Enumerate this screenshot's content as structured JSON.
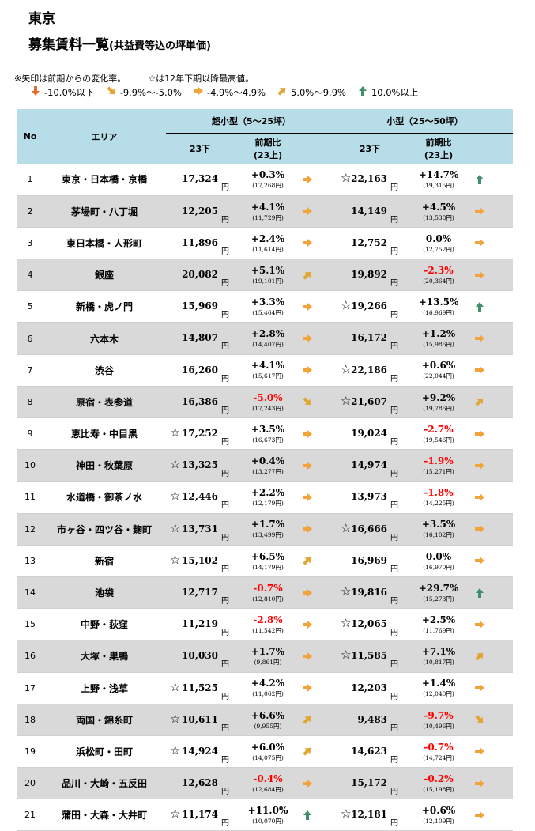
{
  "title": "東京",
  "subtitle_main": "募集賃料一覧",
  "subtitle_sub": "(共益費等込の坪単価)",
  "notes": [
    "※矢印は前期からの変化率。",
    "☆は12年下期以降最高値。"
  ],
  "legend": [
    {
      "icon": "arrow-down-icon",
      "label": "-10.0%以下",
      "color": "#e36c2c"
    },
    {
      "icon": "arrow-down-right-icon",
      "label": "-9.9%〜-5.0%",
      "color": "#e3a532"
    },
    {
      "icon": "arrow-right-icon",
      "label": "-4.9%〜4.9%",
      "color": "#f2a33a"
    },
    {
      "icon": "arrow-up-right-icon",
      "label": "5.0%〜9.9%",
      "color": "#e3a532"
    },
    {
      "icon": "arrow-up-icon",
      "label": "10.0%以上",
      "color": "#3f8f6a"
    }
  ],
  "header": {
    "no": "No",
    "area": "エリア",
    "group1": "超小型（5〜25坪）",
    "group2": "小型（25〜50坪）",
    "period": "23下",
    "ratio_line1": "前期比",
    "ratio_line2": "(23上)"
  },
  "yen": "円",
  "star": "☆",
  "rows": [
    {
      "no": "1",
      "area": "東京・日本橋・京橋",
      "s_star": false,
      "s_val": "17,324",
      "s_pct": "+0.3%",
      "s_neg": false,
      "s_prev": "(17,268円)",
      "s_arrow": "right",
      "m_star": true,
      "m_val": "22,163",
      "m_pct": "+14.7%",
      "m_neg": false,
      "m_prev": "(19,315円)",
      "m_arrow": "up"
    },
    {
      "no": "2",
      "area": "茅場町・八丁堀",
      "s_star": false,
      "s_val": "12,205",
      "s_pct": "+4.1%",
      "s_neg": false,
      "s_prev": "(11,729円)",
      "s_arrow": "right",
      "m_star": false,
      "m_val": "14,149",
      "m_pct": "+4.5%",
      "m_neg": false,
      "m_prev": "(13,538円)",
      "m_arrow": "right"
    },
    {
      "no": "3",
      "area": "東日本橋・人形町",
      "s_star": false,
      "s_val": "11,896",
      "s_pct": "+2.4%",
      "s_neg": false,
      "s_prev": "(11,614円)",
      "s_arrow": "right",
      "m_star": false,
      "m_val": "12,752",
      "m_pct": "0.0%",
      "m_neg": false,
      "m_prev": "(12,752円)",
      "m_arrow": "right"
    },
    {
      "no": "4",
      "area": "銀座",
      "s_star": false,
      "s_val": "20,082",
      "s_pct": "+5.1%",
      "s_neg": false,
      "s_prev": "(19,101円)",
      "s_arrow": "upright",
      "m_star": false,
      "m_val": "19,892",
      "m_pct": "-2.3%",
      "m_neg": true,
      "m_prev": "(20,364円)",
      "m_arrow": "right"
    },
    {
      "no": "5",
      "area": "新橋・虎ノ門",
      "s_star": false,
      "s_val": "15,969",
      "s_pct": "+3.3%",
      "s_neg": false,
      "s_prev": "(15,464円)",
      "s_arrow": "right",
      "m_star": true,
      "m_val": "19,266",
      "m_pct": "+13.5%",
      "m_neg": false,
      "m_prev": "(16,969円)",
      "m_arrow": "up"
    },
    {
      "no": "6",
      "area": "六本木",
      "s_star": false,
      "s_val": "14,807",
      "s_pct": "+2.8%",
      "s_neg": false,
      "s_prev": "(14,407円)",
      "s_arrow": "right",
      "m_star": false,
      "m_val": "16,172",
      "m_pct": "+1.2%",
      "m_neg": false,
      "m_prev": "(15,986円)",
      "m_arrow": "right"
    },
    {
      "no": "7",
      "area": "渋谷",
      "s_star": false,
      "s_val": "16,260",
      "s_pct": "+4.1%",
      "s_neg": false,
      "s_prev": "(15,617円)",
      "s_arrow": "right",
      "m_star": true,
      "m_val": "22,186",
      "m_pct": "+0.6%",
      "m_neg": false,
      "m_prev": "(22,044円)",
      "m_arrow": "right"
    },
    {
      "no": "8",
      "area": "原宿・表参道",
      "s_star": false,
      "s_val": "16,386",
      "s_pct": "-5.0%",
      "s_neg": true,
      "s_prev": "(17,243円)",
      "s_arrow": "downright",
      "m_star": true,
      "m_val": "21,607",
      "m_pct": "+9.2%",
      "m_neg": false,
      "m_prev": "(19,786円)",
      "m_arrow": "upright"
    },
    {
      "no": "9",
      "area": "恵比寿・中目黒",
      "s_star": true,
      "s_val": "17,252",
      "s_pct": "+3.5%",
      "s_neg": false,
      "s_prev": "(16,673円)",
      "s_arrow": "right",
      "m_star": false,
      "m_val": "19,024",
      "m_pct": "-2.7%",
      "m_neg": true,
      "m_prev": "(19,546円)",
      "m_arrow": "right"
    },
    {
      "no": "10",
      "area": "神田・秋葉原",
      "s_star": true,
      "s_val": "13,325",
      "s_pct": "+0.4%",
      "s_neg": false,
      "s_prev": "(13,277円)",
      "s_arrow": "right",
      "m_star": false,
      "m_val": "14,974",
      "m_pct": "-1.9%",
      "m_neg": true,
      "m_prev": "(15,271円)",
      "m_arrow": "right"
    },
    {
      "no": "11",
      "area": "水道橋・御茶ノ水",
      "s_star": true,
      "s_val": "12,446",
      "s_pct": "+2.2%",
      "s_neg": false,
      "s_prev": "(12,179円)",
      "s_arrow": "right",
      "m_star": false,
      "m_val": "13,973",
      "m_pct": "-1.8%",
      "m_neg": true,
      "m_prev": "(14,225円)",
      "m_arrow": "right"
    },
    {
      "no": "12",
      "area": "市ヶ谷・四ツ谷・麹町",
      "s_star": true,
      "s_val": "13,731",
      "s_pct": "+1.7%",
      "s_neg": false,
      "s_prev": "(13,499円)",
      "s_arrow": "right",
      "m_star": true,
      "m_val": "16,666",
      "m_pct": "+3.5%",
      "m_neg": false,
      "m_prev": "(16,102円)",
      "m_arrow": "right"
    },
    {
      "no": "13",
      "area": "新宿",
      "s_star": true,
      "s_val": "15,102",
      "s_pct": "+6.5%",
      "s_neg": false,
      "s_prev": "(14,179円)",
      "s_arrow": "upright",
      "m_star": false,
      "m_val": "16,969",
      "m_pct": "0.0%",
      "m_neg": false,
      "m_prev": "(16,970円)",
      "m_arrow": "right"
    },
    {
      "no": "14",
      "area": "池袋",
      "s_star": false,
      "s_val": "12,717",
      "s_pct": "-0.7%",
      "s_neg": true,
      "s_prev": "(12,810円)",
      "s_arrow": "right",
      "m_star": true,
      "m_val": "19,816",
      "m_pct": "+29.7%",
      "m_neg": false,
      "m_prev": "(15,273円)",
      "m_arrow": "up"
    },
    {
      "no": "15",
      "area": "中野・荻窪",
      "s_star": false,
      "s_val": "11,219",
      "s_pct": "-2.8%",
      "s_neg": true,
      "s_prev": "(11,542円)",
      "s_arrow": "right",
      "m_star": true,
      "m_val": "12,065",
      "m_pct": "+2.5%",
      "m_neg": false,
      "m_prev": "(11,769円)",
      "m_arrow": "right"
    },
    {
      "no": "16",
      "area": "大塚・巣鴨",
      "s_star": false,
      "s_val": "10,030",
      "s_pct": "+1.7%",
      "s_neg": false,
      "s_prev": "(9,861円)",
      "s_arrow": "right",
      "m_star": true,
      "m_val": "11,585",
      "m_pct": "+7.1%",
      "m_neg": false,
      "m_prev": "(10,817円)",
      "m_arrow": "upright"
    },
    {
      "no": "17",
      "area": "上野・浅草",
      "s_star": true,
      "s_val": "11,525",
      "s_pct": "+4.2%",
      "s_neg": false,
      "s_prev": "(11,062円)",
      "s_arrow": "right",
      "m_star": false,
      "m_val": "12,203",
      "m_pct": "+1.4%",
      "m_neg": false,
      "m_prev": "(12,040円)",
      "m_arrow": "right"
    },
    {
      "no": "18",
      "area": "両国・錦糸町",
      "s_star": true,
      "s_val": "10,611",
      "s_pct": "+6.6%",
      "s_neg": false,
      "s_prev": "(9,955円)",
      "s_arrow": "upright",
      "m_star": false,
      "m_val": "9,483",
      "m_pct": "-9.7%",
      "m_neg": true,
      "m_prev": "(10,496円)",
      "m_arrow": "downright"
    },
    {
      "no": "19",
      "area": "浜松町・田町",
      "s_star": true,
      "s_val": "14,924",
      "s_pct": "+6.0%",
      "s_neg": false,
      "s_prev": "(14,075円)",
      "s_arrow": "upright",
      "m_star": false,
      "m_val": "14,623",
      "m_pct": "-0.7%",
      "m_neg": true,
      "m_prev": "(14,724円)",
      "m_arrow": "right"
    },
    {
      "no": "20",
      "area": "品川・大崎・五反田",
      "s_star": false,
      "s_val": "12,628",
      "s_pct": "-0.4%",
      "s_neg": true,
      "s_prev": "(12,684円)",
      "s_arrow": "right",
      "m_star": false,
      "m_val": "15,172",
      "m_pct": "-0.2%",
      "m_neg": true,
      "m_prev": "(15,198円)",
      "m_arrow": "right"
    },
    {
      "no": "21",
      "area": "蒲田・大森・大井町",
      "s_star": true,
      "s_val": "11,174",
      "s_pct": "+11.0%",
      "s_neg": false,
      "s_prev": "(10,070円)",
      "s_arrow": "up",
      "m_star": true,
      "m_val": "12,181",
      "m_pct": "+0.6%",
      "m_neg": false,
      "m_prev": "(12,109円)",
      "m_arrow": "right"
    }
  ]
}
